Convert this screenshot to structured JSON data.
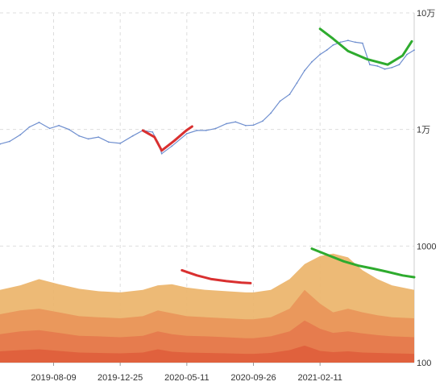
{
  "chart_data": {
    "type": "area",
    "y_scale": "log",
    "ylim": [
      100,
      100000
    ],
    "y_ticks": [
      {
        "value": 100000,
        "label": "10万"
      },
      {
        "value": 10000,
        "label": "1万"
      },
      {
        "value": 1000,
        "label": "1000"
      },
      {
        "value": 100,
        "label": "100"
      }
    ],
    "x_ticks": [
      "2019-08-09",
      "2019-12-25",
      "2020-05-11",
      "2020-09-26",
      "2021-02-11"
    ],
    "x_range": [
      "2019-04-20",
      "2021-08-25"
    ],
    "grid": true,
    "colors": {
      "line": "#6f8fcf",
      "band_top": "#ecb46a",
      "band_2": "#e9955a",
      "band_3": "#e57a4d",
      "band_4": "#df5e3c",
      "grid": "#dddddd",
      "annot_red": "#d93030",
      "annot_green": "#2eab2e"
    },
    "price_series": {
      "x": [
        "2019-04-20",
        "2019-05-10",
        "2019-06-01",
        "2019-06-20",
        "2019-07-10",
        "2019-08-01",
        "2019-08-20",
        "2019-09-10",
        "2019-10-01",
        "2019-10-20",
        "2019-11-10",
        "2019-12-01",
        "2019-12-25",
        "2020-01-20",
        "2020-02-10",
        "2020-03-01",
        "2020-03-12",
        "2020-03-20",
        "2020-04-10",
        "2020-05-11",
        "2020-06-01",
        "2020-06-20",
        "2020-07-10",
        "2020-08-01",
        "2020-08-20",
        "2020-09-10",
        "2020-09-26",
        "2020-10-15",
        "2020-11-01",
        "2020-11-20",
        "2020-12-10",
        "2020-12-25",
        "2021-01-10",
        "2021-01-25",
        "2021-02-11",
        "2021-02-25",
        "2021-03-10",
        "2021-03-25",
        "2021-04-10",
        "2021-04-25",
        "2021-05-10",
        "2021-05-25",
        "2021-06-10",
        "2021-06-25",
        "2021-07-10",
        "2021-07-25",
        "2021-08-10",
        "2021-08-25"
      ],
      "y": [
        7500,
        7900,
        9000,
        10500,
        11500,
        10200,
        10800,
        10000,
        8800,
        8300,
        8600,
        7800,
        7600,
        8800,
        9800,
        9500,
        7800,
        6200,
        7200,
        9200,
        9800,
        9800,
        10200,
        11200,
        11600,
        10800,
        10900,
        11800,
        13800,
        17500,
        20000,
        25000,
        32000,
        38000,
        44000,
        48000,
        53000,
        56000,
        58000,
        56000,
        55000,
        36000,
        35000,
        33000,
        34000,
        36000,
        44000,
        48000
      ]
    },
    "bands": [
      {
        "x": [
          "2019-04-20",
          "2019-06-01",
          "2019-07-10",
          "2019-08-20",
          "2019-10-01",
          "2019-11-10",
          "2019-12-25",
          "2020-02-10",
          "2020-03-12",
          "2020-04-10",
          "2020-05-11",
          "2020-06-20",
          "2020-08-01",
          "2020-09-10",
          "2020-09-26",
          "2020-11-01",
          "2020-12-10",
          "2021-01-10",
          "2021-02-11",
          "2021-03-10",
          "2021-04-10",
          "2021-05-10",
          "2021-06-10",
          "2021-07-10",
          "2021-08-25"
        ],
        "y": [
          420,
          460,
          520,
          470,
          430,
          410,
          400,
          420,
          460,
          470,
          440,
          420,
          410,
          400,
          400,
          420,
          520,
          700,
          820,
          860,
          800,
          620,
          520,
          460,
          420
        ]
      },
      {
        "x": [
          "2019-04-20",
          "2019-06-01",
          "2019-07-10",
          "2019-08-20",
          "2019-10-01",
          "2019-11-10",
          "2019-12-25",
          "2020-02-10",
          "2020-03-12",
          "2020-04-10",
          "2020-05-11",
          "2020-06-20",
          "2020-08-01",
          "2020-09-10",
          "2020-09-26",
          "2020-11-01",
          "2020-12-10",
          "2021-01-10",
          "2021-02-11",
          "2021-03-10",
          "2021-04-10",
          "2021-05-10",
          "2021-06-10",
          "2021-07-10",
          "2021-08-25"
        ],
        "y": [
          260,
          280,
          290,
          270,
          250,
          245,
          240,
          250,
          280,
          265,
          250,
          245,
          240,
          235,
          235,
          245,
          290,
          420,
          320,
          270,
          290,
          270,
          255,
          245,
          240
        ]
      },
      {
        "x": [
          "2019-04-20",
          "2019-06-01",
          "2019-07-10",
          "2019-08-20",
          "2019-10-01",
          "2019-11-10",
          "2019-12-25",
          "2020-02-10",
          "2020-03-12",
          "2020-04-10",
          "2020-05-11",
          "2020-06-20",
          "2020-08-01",
          "2020-09-10",
          "2020-09-26",
          "2020-11-01",
          "2020-12-10",
          "2021-01-10",
          "2021-02-11",
          "2021-03-10",
          "2021-04-10",
          "2021-05-10",
          "2021-06-10",
          "2021-07-10",
          "2021-08-25"
        ],
        "y": [
          175,
          185,
          190,
          180,
          170,
          168,
          165,
          170,
          185,
          175,
          170,
          168,
          165,
          162,
          162,
          168,
          185,
          230,
          195,
          180,
          185,
          178,
          172,
          168,
          165
        ]
      },
      {
        "x": [
          "2019-04-20",
          "2019-06-01",
          "2019-07-10",
          "2019-08-20",
          "2019-10-01",
          "2019-11-10",
          "2019-12-25",
          "2020-02-10",
          "2020-03-12",
          "2020-04-10",
          "2020-05-11",
          "2020-06-20",
          "2020-08-01",
          "2020-09-10",
          "2020-09-26",
          "2020-11-01",
          "2020-12-10",
          "2021-01-10",
          "2021-02-11",
          "2021-03-10",
          "2021-04-10",
          "2021-05-10",
          "2021-06-10",
          "2021-07-10",
          "2021-08-25"
        ],
        "y": [
          125,
          128,
          130,
          126,
          122,
          121,
          120,
          122,
          130,
          124,
          122,
          121,
          120,
          119,
          119,
          121,
          128,
          140,
          126,
          123,
          125,
          122,
          121,
          120,
          119
        ]
      }
    ],
    "annotations": [
      {
        "color": "red",
        "x": [
          "2020-02-10",
          "2020-03-05",
          "2020-03-20",
          "2020-04-15",
          "2020-05-10",
          "2020-05-22"
        ],
        "y": [
          9800,
          8600,
          6600,
          8000,
          9800,
          10600
        ]
      },
      {
        "color": "green",
        "x": [
          "2021-02-11",
          "2021-03-10",
          "2021-04-10",
          "2021-05-20",
          "2021-07-01",
          "2021-08-01",
          "2021-08-20"
        ],
        "y": [
          73000,
          60000,
          47000,
          40000,
          36000,
          43000,
          57000
        ]
      },
      {
        "color": "red",
        "x": [
          "2020-05-01",
          "2020-06-01",
          "2020-07-01",
          "2020-08-01",
          "2020-09-01",
          "2020-09-20"
        ],
        "y": [
          620,
          560,
          520,
          500,
          485,
          480
        ]
      },
      {
        "color": "green",
        "x": [
          "2021-01-25",
          "2021-03-01",
          "2021-04-01",
          "2021-05-01",
          "2021-06-01",
          "2021-07-01",
          "2021-08-01",
          "2021-08-25"
        ],
        "y": [
          950,
          830,
          740,
          680,
          640,
          600,
          560,
          540
        ]
      }
    ]
  }
}
